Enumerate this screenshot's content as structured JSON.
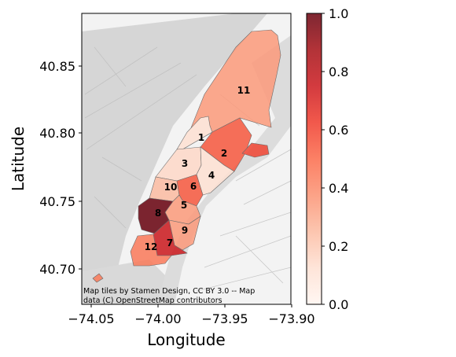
{
  "axes": {
    "xlabel": "Longitude",
    "ylabel": "Latitude",
    "x_ticks": [
      "−74.05",
      "−74.00",
      "−73.95",
      "−73.90"
    ],
    "y_ticks": [
      "40.85",
      "40.80",
      "40.75",
      "40.70"
    ]
  },
  "attribution": {
    "line1": "Map tiles by Stamen Design, CC BY 3.0 -- Map",
    "line2": "data (C) OpenStreetMap contributors"
  },
  "colorbar": {
    "ticks": [
      "0.0",
      "0.2",
      "0.4",
      "0.6",
      "0.8",
      "1.0"
    ],
    "colormap": "Reds",
    "low_color": "#fff5f0",
    "high_color": "#67000d"
  },
  "regions": [
    {
      "label": "1",
      "value": 0.12
    },
    {
      "label": "2",
      "value": 0.55
    },
    {
      "label": "3",
      "value": 0.15
    },
    {
      "label": "4",
      "value": 0.12
    },
    {
      "label": "5",
      "value": 0.35
    },
    {
      "label": "6",
      "value": 0.55
    },
    {
      "label": "7",
      "value": 0.75
    },
    {
      "label": "8",
      "value": 1.0
    },
    {
      "label": "9",
      "value": 0.35
    },
    {
      "label": "10",
      "value": 0.25
    },
    {
      "label": "11",
      "value": 0.35
    },
    {
      "label": "12",
      "value": 0.45
    }
  ],
  "extra_areas": [
    {
      "name": "east-extension",
      "value": 0.6
    },
    {
      "name": "southwest-fragment",
      "value": 0.45
    }
  ]
}
